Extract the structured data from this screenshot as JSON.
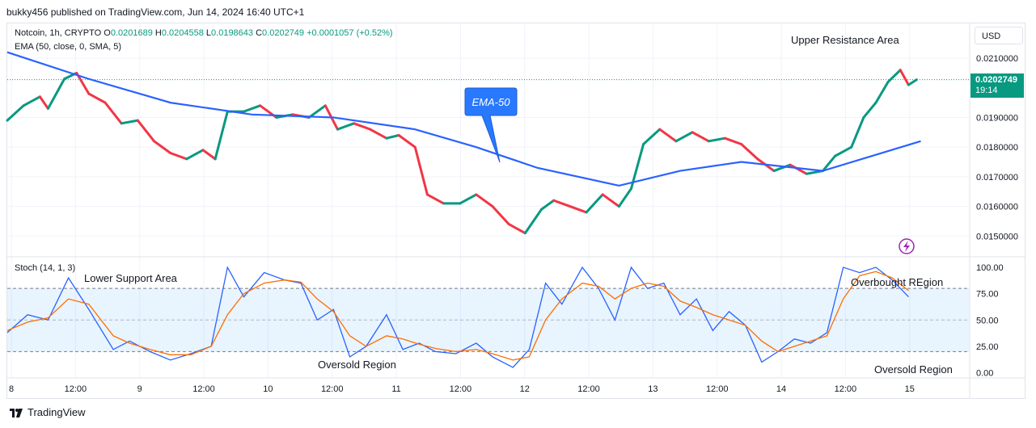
{
  "header": {
    "text": "bukky456 published on TradingView.com, Jun 14, 2024 16:40 UTC+1"
  },
  "symbol": {
    "name": "Notcoin, 1h, CRYPTO",
    "open_label": "O",
    "open": "0.0201689",
    "high_label": "H",
    "high": "0.0204558",
    "low_label": "L",
    "low": "0.0198643",
    "close_label": "C",
    "close": "0.0202749",
    "change": "+0.0001057 (+0.52%)"
  },
  "ema_legend": "EMA (50, close, 0, SMA, 5)",
  "stoch_legend": "Stoch (14, 1, 3)",
  "currency_button": "USD",
  "price_tag": {
    "price": "0.0202749",
    "timer": "19:14"
  },
  "footer": {
    "brand": "TradingView"
  },
  "colors": {
    "up": "#089981",
    "down": "#f23645",
    "ema": "#2962ff",
    "k_line": "#2962ff",
    "d_line": "#ff6d00",
    "callout": "#2979ff"
  },
  "chart_data": [
    {
      "type": "candlestick",
      "title": "Notcoin, 1h, CRYPTO",
      "y_ticks": [
        "0.0210000",
        "0.0190000",
        "0.0180000",
        "0.0170000",
        "0.0160000",
        "0.0150000"
      ],
      "y_tick_values": [
        0.021,
        0.019,
        0.018,
        0.017,
        0.016,
        0.015
      ],
      "x_ticks": [
        "8",
        "12:00",
        "9",
        "12:00",
        "10",
        "12:00",
        "11",
        "12:00",
        "12",
        "12:00",
        "13",
        "12:00",
        "14",
        "12:00",
        "15"
      ],
      "price_points": [
        {
          "x": 0,
          "y": 0.0189
        },
        {
          "x": 4,
          "y": 0.0194
        },
        {
          "x": 8,
          "y": 0.0197
        },
        {
          "x": 10,
          "y": 0.0193
        },
        {
          "x": 14,
          "y": 0.0203
        },
        {
          "x": 17,
          "y": 0.0205
        },
        {
          "x": 20,
          "y": 0.0198
        },
        {
          "x": 24,
          "y": 0.0195
        },
        {
          "x": 28,
          "y": 0.0188
        },
        {
          "x": 32,
          "y": 0.0189
        },
        {
          "x": 36,
          "y": 0.0182
        },
        {
          "x": 40,
          "y": 0.0178
        },
        {
          "x": 44,
          "y": 0.0176
        },
        {
          "x": 48,
          "y": 0.0179
        },
        {
          "x": 51,
          "y": 0.0176
        },
        {
          "x": 54,
          "y": 0.0192
        },
        {
          "x": 58,
          "y": 0.0192
        },
        {
          "x": 62,
          "y": 0.0194
        },
        {
          "x": 66,
          "y": 0.019
        },
        {
          "x": 70,
          "y": 0.0191
        },
        {
          "x": 74,
          "y": 0.019
        },
        {
          "x": 78,
          "y": 0.0194
        },
        {
          "x": 81,
          "y": 0.0186
        },
        {
          "x": 85,
          "y": 0.0188
        },
        {
          "x": 89,
          "y": 0.0186
        },
        {
          "x": 93,
          "y": 0.0183
        },
        {
          "x": 96,
          "y": 0.0184
        },
        {
          "x": 100,
          "y": 0.018
        },
        {
          "x": 103,
          "y": 0.0164
        },
        {
          "x": 107,
          "y": 0.0161
        },
        {
          "x": 111,
          "y": 0.0161
        },
        {
          "x": 115,
          "y": 0.0164
        },
        {
          "x": 119,
          "y": 0.016
        },
        {
          "x": 123,
          "y": 0.0154
        },
        {
          "x": 127,
          "y": 0.0151
        },
        {
          "x": 131,
          "y": 0.0159
        },
        {
          "x": 134,
          "y": 0.0162
        },
        {
          "x": 138,
          "y": 0.016
        },
        {
          "x": 142,
          "y": 0.0158
        },
        {
          "x": 146,
          "y": 0.0164
        },
        {
          "x": 150,
          "y": 0.016
        },
        {
          "x": 153,
          "y": 0.0166
        },
        {
          "x": 156,
          "y": 0.0181
        },
        {
          "x": 160,
          "y": 0.0186
        },
        {
          "x": 164,
          "y": 0.0182
        },
        {
          "x": 168,
          "y": 0.0185
        },
        {
          "x": 172,
          "y": 0.0182
        },
        {
          "x": 176,
          "y": 0.0183
        },
        {
          "x": 180,
          "y": 0.0181
        },
        {
          "x": 184,
          "y": 0.0176
        },
        {
          "x": 188,
          "y": 0.0172
        },
        {
          "x": 192,
          "y": 0.0174
        },
        {
          "x": 196,
          "y": 0.0171
        },
        {
          "x": 200,
          "y": 0.0172
        },
        {
          "x": 203,
          "y": 0.0177
        },
        {
          "x": 207,
          "y": 0.018
        },
        {
          "x": 210,
          "y": 0.019
        },
        {
          "x": 213,
          "y": 0.0195
        },
        {
          "x": 216,
          "y": 0.0202
        },
        {
          "x": 219,
          "y": 0.0206
        },
        {
          "x": 221,
          "y": 0.0201
        },
        {
          "x": 223,
          "y": 0.0202749
        }
      ],
      "ema50": [
        {
          "x": 0,
          "y": 0.0212
        },
        {
          "x": 20,
          "y": 0.0203
        },
        {
          "x": 40,
          "y": 0.0195
        },
        {
          "x": 60,
          "y": 0.0191
        },
        {
          "x": 80,
          "y": 0.019
        },
        {
          "x": 100,
          "y": 0.0186
        },
        {
          "x": 115,
          "y": 0.018
        },
        {
          "x": 130,
          "y": 0.0173
        },
        {
          "x": 150,
          "y": 0.0167
        },
        {
          "x": 165,
          "y": 0.0172
        },
        {
          "x": 180,
          "y": 0.0175
        },
        {
          "x": 200,
          "y": 0.0172
        },
        {
          "x": 212,
          "y": 0.0177
        },
        {
          "x": 224,
          "y": 0.0182
        }
      ],
      "annotations": [
        "Upper Resistance Area",
        "EMA-50"
      ],
      "x_range": [
        0,
        236
      ],
      "ylim": [
        0.0143,
        0.0222
      ]
    },
    {
      "type": "line",
      "title": "Stoch (14, 1, 3)",
      "y_ticks": [
        "100.00",
        "75.00",
        "50.00",
        "25.00",
        "0.00"
      ],
      "y_tick_values": [
        100,
        75,
        50,
        25,
        0
      ],
      "levels": [
        80,
        20
      ],
      "series": [
        {
          "name": "%K",
          "values": [
            {
              "x": 0,
              "y": 38
            },
            {
              "x": 5,
              "y": 55
            },
            {
              "x": 10,
              "y": 50
            },
            {
              "x": 15,
              "y": 90
            },
            {
              "x": 20,
              "y": 60
            },
            {
              "x": 26,
              "y": 22
            },
            {
              "x": 30,
              "y": 30
            },
            {
              "x": 35,
              "y": 20
            },
            {
              "x": 40,
              "y": 12
            },
            {
              "x": 45,
              "y": 18
            },
            {
              "x": 50,
              "y": 25
            },
            {
              "x": 54,
              "y": 100
            },
            {
              "x": 58,
              "y": 72
            },
            {
              "x": 63,
              "y": 95
            },
            {
              "x": 68,
              "y": 88
            },
            {
              "x": 72,
              "y": 85
            },
            {
              "x": 76,
              "y": 50
            },
            {
              "x": 80,
              "y": 60
            },
            {
              "x": 84,
              "y": 15
            },
            {
              "x": 88,
              "y": 25
            },
            {
              "x": 93,
              "y": 55
            },
            {
              "x": 97,
              "y": 22
            },
            {
              "x": 101,
              "y": 28
            },
            {
              "x": 105,
              "y": 20
            },
            {
              "x": 110,
              "y": 18
            },
            {
              "x": 115,
              "y": 28
            },
            {
              "x": 119,
              "y": 15
            },
            {
              "x": 124,
              "y": 5
            },
            {
              "x": 128,
              "y": 22
            },
            {
              "x": 132,
              "y": 85
            },
            {
              "x": 136,
              "y": 65
            },
            {
              "x": 141,
              "y": 100
            },
            {
              "x": 145,
              "y": 80
            },
            {
              "x": 149,
              "y": 50
            },
            {
              "x": 153,
              "y": 100
            },
            {
              "x": 157,
              "y": 80
            },
            {
              "x": 161,
              "y": 85
            },
            {
              "x": 165,
              "y": 55
            },
            {
              "x": 169,
              "y": 70
            },
            {
              "x": 173,
              "y": 40
            },
            {
              "x": 177,
              "y": 58
            },
            {
              "x": 181,
              "y": 45
            },
            {
              "x": 185,
              "y": 10
            },
            {
              "x": 189,
              "y": 20
            },
            {
              "x": 193,
              "y": 32
            },
            {
              "x": 197,
              "y": 28
            },
            {
              "x": 201,
              "y": 38
            },
            {
              "x": 205,
              "y": 100
            },
            {
              "x": 209,
              "y": 95
            },
            {
              "x": 213,
              "y": 100
            },
            {
              "x": 217,
              "y": 88
            },
            {
              "x": 221,
              "y": 72
            }
          ]
        },
        {
          "name": "%D",
          "values": [
            {
              "x": 0,
              "y": 40
            },
            {
              "x": 5,
              "y": 48
            },
            {
              "x": 10,
              "y": 52
            },
            {
              "x": 15,
              "y": 70
            },
            {
              "x": 20,
              "y": 65
            },
            {
              "x": 26,
              "y": 35
            },
            {
              "x": 30,
              "y": 28
            },
            {
              "x": 35,
              "y": 22
            },
            {
              "x": 40,
              "y": 17
            },
            {
              "x": 45,
              "y": 17
            },
            {
              "x": 50,
              "y": 25
            },
            {
              "x": 54,
              "y": 55
            },
            {
              "x": 58,
              "y": 75
            },
            {
              "x": 63,
              "y": 85
            },
            {
              "x": 68,
              "y": 88
            },
            {
              "x": 72,
              "y": 86
            },
            {
              "x": 76,
              "y": 70
            },
            {
              "x": 80,
              "y": 58
            },
            {
              "x": 84,
              "y": 35
            },
            {
              "x": 88,
              "y": 25
            },
            {
              "x": 93,
              "y": 35
            },
            {
              "x": 97,
              "y": 32
            },
            {
              "x": 101,
              "y": 27
            },
            {
              "x": 105,
              "y": 23
            },
            {
              "x": 110,
              "y": 20
            },
            {
              "x": 115,
              "y": 22
            },
            {
              "x": 119,
              "y": 18
            },
            {
              "x": 124,
              "y": 12
            },
            {
              "x": 128,
              "y": 15
            },
            {
              "x": 132,
              "y": 50
            },
            {
              "x": 136,
              "y": 70
            },
            {
              "x": 141,
              "y": 85
            },
            {
              "x": 145,
              "y": 82
            },
            {
              "x": 149,
              "y": 70
            },
            {
              "x": 153,
              "y": 80
            },
            {
              "x": 157,
              "y": 85
            },
            {
              "x": 161,
              "y": 82
            },
            {
              "x": 165,
              "y": 68
            },
            {
              "x": 169,
              "y": 62
            },
            {
              "x": 173,
              "y": 55
            },
            {
              "x": 177,
              "y": 50
            },
            {
              "x": 181,
              "y": 45
            },
            {
              "x": 185,
              "y": 30
            },
            {
              "x": 189,
              "y": 20
            },
            {
              "x": 193,
              "y": 25
            },
            {
              "x": 197,
              "y": 30
            },
            {
              "x": 201,
              "y": 35
            },
            {
              "x": 205,
              "y": 70
            },
            {
              "x": 209,
              "y": 92
            },
            {
              "x": 213,
              "y": 96
            },
            {
              "x": 217,
              "y": 90
            },
            {
              "x": 221,
              "y": 78
            }
          ]
        }
      ],
      "annotations": [
        "Lower Support Area",
        "Oversold Region",
        "Overbought REgion",
        "Oversold Region"
      ],
      "x_range": [
        0,
        236
      ],
      "ylim": [
        -5,
        110
      ]
    }
  ]
}
